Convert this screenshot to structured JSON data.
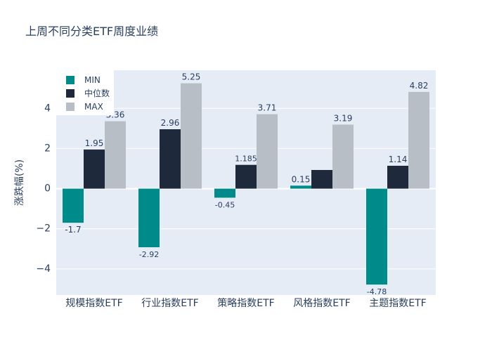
{
  "chart_data": {
    "type": "bar",
    "title": "上周不同分类ETF周度业绩",
    "xlabel": "",
    "ylabel": "涨跌幅(%)",
    "ylim": [
      -5.3,
      5.9
    ],
    "yticks": [
      -4,
      -2,
      0,
      2,
      4
    ],
    "ytick_labels": [
      "−4",
      "−2",
      "0",
      "2",
      "4"
    ],
    "grid": true,
    "legend_position": "top-left",
    "categories": [
      "规模指数ETF",
      "行业指数ETF",
      "策略指数ETF",
      "风格指数ETF",
      "主题指数ETF"
    ],
    "series": [
      {
        "name": "MIN",
        "color": "#008b8b",
        "values": [
          -1.7,
          -2.92,
          -0.45,
          0.15,
          -4.78
        ],
        "labels": [
          "-1.7",
          "-2.92",
          "-0.45",
          "0.15",
          "-4.78"
        ]
      },
      {
        "name": "中位数",
        "color": "#1e293b",
        "values": [
          1.95,
          2.96,
          1.185,
          0.93,
          1.14
        ],
        "labels": [
          "1.95",
          "2.96",
          "1.185",
          "",
          "1.14"
        ]
      },
      {
        "name": "MAX",
        "color": "#b8bec6",
        "values": [
          3.36,
          5.25,
          3.71,
          3.19,
          4.82
        ],
        "labels": [
          "3.36",
          "5.25",
          "3.71",
          "3.19",
          "4.82"
        ]
      }
    ]
  }
}
